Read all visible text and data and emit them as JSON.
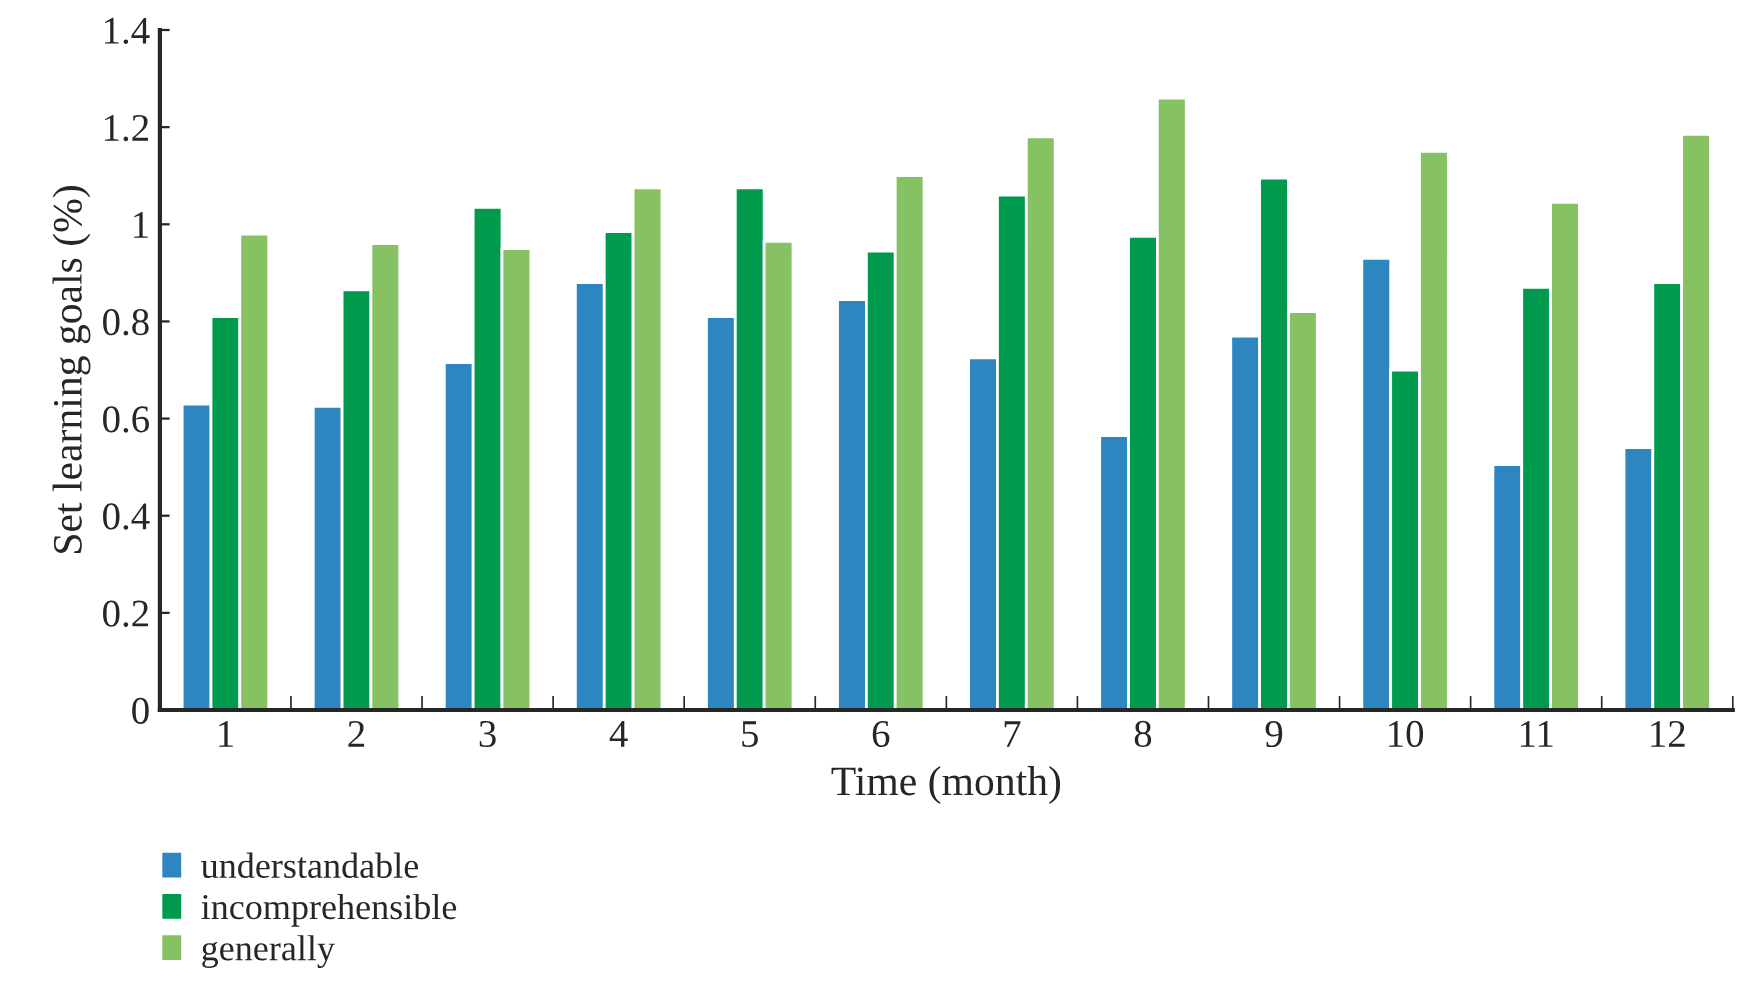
{
  "chart_data": {
    "type": "bar",
    "xlabel": "Time (month)",
    "ylabel": "Set learning goals (%)",
    "categories": [
      "1",
      "2",
      "3",
      "4",
      "5",
      "6",
      "7",
      "8",
      "9",
      "10",
      "11",
      "12"
    ],
    "series": [
      {
        "name": "understandable",
        "color": "#2e86c1",
        "values": [
          0.63,
          0.625,
          0.715,
          0.88,
          0.81,
          0.845,
          0.725,
          0.565,
          0.77,
          0.93,
          0.505,
          0.54
        ]
      },
      {
        "name": "incomprehensible",
        "color": "#009a4e",
        "values": [
          0.81,
          0.865,
          1.035,
          0.985,
          1.075,
          0.945,
          1.06,
          0.975,
          1.095,
          0.7,
          0.87,
          0.88
        ]
      },
      {
        "name": "generally",
        "color": "#86c263",
        "values": [
          0.98,
          0.96,
          0.95,
          1.075,
          0.965,
          1.1,
          1.18,
          1.26,
          0.82,
          1.15,
          1.045,
          1.185
        ]
      }
    ],
    "ylim": [
      0,
      1.4
    ],
    "yticks": [
      0,
      0.2,
      0.4,
      0.6,
      0.8,
      1,
      1.2,
      1.4
    ],
    "grid": false,
    "legend": "bottom left"
  }
}
